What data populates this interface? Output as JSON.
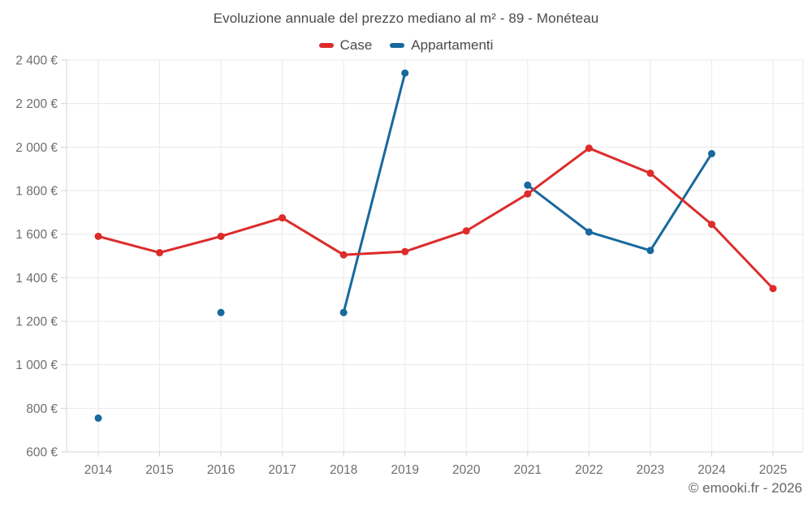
{
  "page": {
    "title": "Evoluzione annuale del prezzo mediano al m² - 89 - Monéteau",
    "footer": "© emooki.fr - 2026"
  },
  "chart_data": {
    "type": "line",
    "title": "Evoluzione annuale del prezzo mediano al m² - 89 - Monéteau",
    "categories": [
      "2014",
      "2015",
      "2016",
      "2017",
      "2018",
      "2019",
      "2020",
      "2021",
      "2022",
      "2023",
      "2024",
      "2025"
    ],
    "series": [
      {
        "name": "Case",
        "color": "#dd2b2b",
        "values": [
          1590,
          1515,
          1590,
          1675,
          1505,
          1520,
          1615,
          1785,
          1995,
          1880,
          1645,
          1350
        ]
      },
      {
        "name": "Appartamenti",
        "color": "#17699e",
        "values": [
          755,
          null,
          1240,
          null,
          1240,
          2340,
          null,
          1825,
          1610,
          1525,
          1970,
          null
        ]
      }
    ],
    "ylabel": "",
    "xlabel": "",
    "ylim": [
      600,
      2400
    ],
    "y_tick_step": 200,
    "y_tick_labels": [
      "600 €",
      "800 €",
      "1 000 €",
      "1 200 €",
      "1 400 €",
      "1 600 €",
      "1 800 €",
      "2 000 €",
      "2 200 €",
      "2 400 €"
    ],
    "grid": true,
    "legend_position": "top",
    "grid_color": "#eaeaea",
    "axis_color": "#d4d4d4",
    "tick_label_color": "#6e6e6e"
  }
}
